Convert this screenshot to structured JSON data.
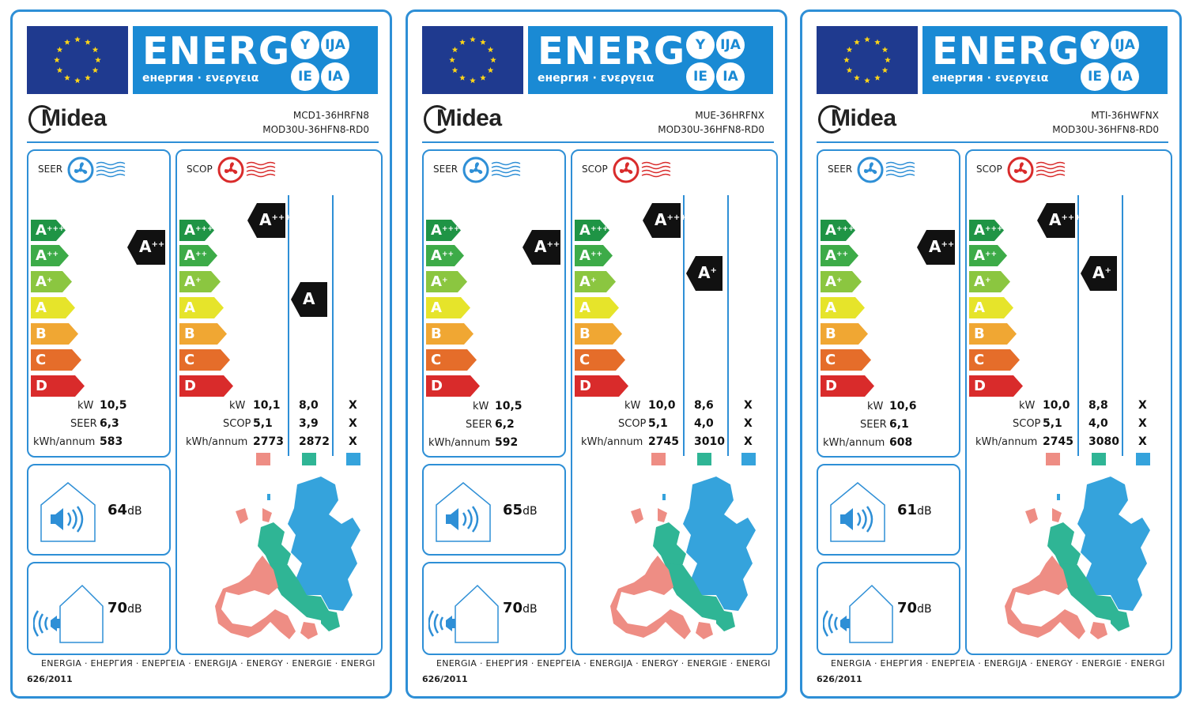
{
  "header": {
    "energ": "ENERG",
    "sub": "енергия · ενεργεια",
    "circles": [
      "Y",
      "IJA",
      "IE",
      "IA"
    ]
  },
  "brand": "Midea",
  "seer_title": "SEER",
  "scop_title": "SCOP",
  "classes": [
    {
      "letter": "A",
      "sup": "+++",
      "color": "#1f9445"
    },
    {
      "letter": "A",
      "sup": "++",
      "color": "#3dab48"
    },
    {
      "letter": "A",
      "sup": "+",
      "color": "#8bc640"
    },
    {
      "letter": "A",
      "sup": "",
      "color": "#e6e42a"
    },
    {
      "letter": "B",
      "sup": "",
      "color": "#f0a733"
    },
    {
      "letter": "C",
      "sup": "",
      "color": "#e56d2a"
    },
    {
      "letter": "D",
      "sup": "",
      "color": "#d92b2b"
    }
  ],
  "units": {
    "kw": "kW",
    "seer": "SEER",
    "scop": "SCOP",
    "kwh": "kWh/annum",
    "db": "dB"
  },
  "swatches": [
    "#ee8d84",
    "#2fb595",
    "#35a3dc"
  ],
  "footer": "ENERGIA · ЕНЕРГИЯ · ΕΝΕΡΓΕΙΑ · ENERGIJA · ENERGY · ENERGIE · ENERGI",
  "regulation": "626/2011",
  "labels": [
    {
      "model_indoor": "MCD1-36HRFN8",
      "model_outdoor": "MOD30U-36HFN8-RD0",
      "seer_class": "A",
      "seer_sup": "++",
      "seer_kw": "10,5",
      "seer_value": "6,3",
      "seer_kwh": "583",
      "scop_col1_class": "A",
      "scop_col1_sup": "+++",
      "scop_col2_class": "A",
      "scop_col2_sup": "",
      "scop_kw": [
        "10,1",
        "8,0",
        "X"
      ],
      "scop_value": [
        "5,1",
        "3,9",
        "X"
      ],
      "scop_kwh": [
        "2773",
        "2872",
        "X"
      ],
      "indoor_db": "64",
      "outdoor_db": "70"
    },
    {
      "model_indoor": "MUE-36HRFNX",
      "model_outdoor": "MOD30U-36HFN8-RD0",
      "seer_class": "A",
      "seer_sup": "++",
      "seer_kw": "10,5",
      "seer_value": "6,2",
      "seer_kwh": "592",
      "scop_col1_class": "A",
      "scop_col1_sup": "+++",
      "scop_col2_class": "A",
      "scop_col2_sup": "+",
      "scop_kw": [
        "10,0",
        "8,6",
        "X"
      ],
      "scop_value": [
        "5,1",
        "4,0",
        "X"
      ],
      "scop_kwh": [
        "2745",
        "3010",
        "X"
      ],
      "indoor_db": "65",
      "outdoor_db": "70"
    },
    {
      "model_indoor": "MTI-36HWFNX",
      "model_outdoor": "MOD30U-36HFN8-RD0",
      "seer_class": "A",
      "seer_sup": "++",
      "seer_kw": "10,6",
      "seer_value": "6,1",
      "seer_kwh": "608",
      "scop_col1_class": "A",
      "scop_col1_sup": "+++",
      "scop_col2_class": "A",
      "scop_col2_sup": "+",
      "scop_kw": [
        "10,0",
        "8,8",
        "X"
      ],
      "scop_value": [
        "5,1",
        "4,0",
        "X"
      ],
      "scop_kwh": [
        "2745",
        "3080",
        "X"
      ],
      "indoor_db": "61",
      "outdoor_db": "70"
    }
  ]
}
